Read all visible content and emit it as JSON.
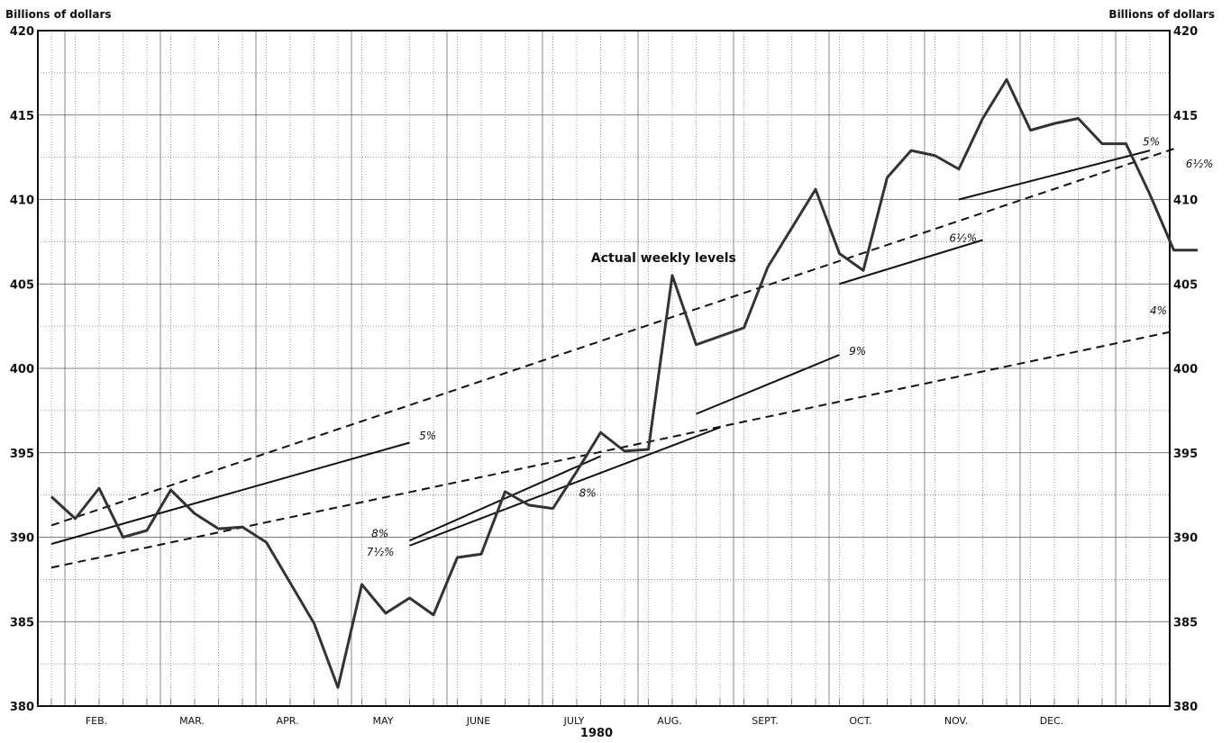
{
  "chart_data": {
    "type": "line",
    "title": "",
    "ylabel_left": "Billions of dollars",
    "ylabel_right": "Billions of dollars",
    "xlabel": "1980",
    "ylim": [
      380,
      420
    ],
    "yticks": [
      380,
      385,
      390,
      395,
      400,
      405,
      410,
      415,
      420
    ],
    "months": [
      "FEB.",
      "MAR.",
      "APR.",
      "MAY",
      "JUNE",
      "JULY",
      "AUG.",
      "SEPT.",
      "OCT.",
      "NOV.",
      "DEC."
    ],
    "grid": true,
    "series": [
      {
        "name": "Actual weekly levels",
        "style": "thick",
        "x_week": [
          0,
          1,
          2,
          3,
          4,
          5,
          6,
          7,
          8,
          9,
          10,
          11,
          12,
          13,
          14,
          15,
          16,
          17,
          18,
          19,
          20,
          21,
          22,
          23,
          24,
          25,
          26,
          27,
          28,
          29,
          30,
          31,
          32,
          33,
          34,
          35,
          36,
          37,
          38,
          39,
          40,
          41,
          42,
          43,
          44,
          45,
          46,
          47,
          48
        ],
        "values": [
          392.4,
          391.1,
          392.9,
          390.0,
          390.4,
          392.8,
          391.4,
          390.5,
          390.6,
          389.7,
          387.3,
          384.9,
          381.1,
          387.2,
          385.5,
          386.4,
          385.4,
          388.8,
          389.0,
          392.7,
          391.9,
          391.7,
          393.9,
          396.2,
          395.1,
          395.2,
          405.5,
          401.4,
          401.9,
          402.4,
          406.0,
          408.3,
          410.6,
          406.8,
          405.8,
          411.3,
          412.9,
          412.6,
          411.8,
          414.8,
          417.1,
          414.1,
          414.5,
          414.8,
          413.3,
          413.3,
          410.3,
          407.0,
          407.0
        ]
      }
    ],
    "target_lines": [
      {
        "label": "5%",
        "style": "solid",
        "x0_week": 0,
        "y0": 389.6,
        "x1_week": 15,
        "y1": 395.6
      },
      {
        "label": "8%",
        "style": "solid",
        "x0_week": 15,
        "y0": 389.8,
        "x1_week": 23,
        "y1": 394.8
      },
      {
        "label": "7½%",
        "style": "solid",
        "x0_week": 15,
        "y0": 389.5,
        "x1_week": 28,
        "y1": 396.5
      },
      {
        "label": "9%",
        "style": "solid",
        "x0_week": 27,
        "y0": 397.3,
        "x1_week": 33,
        "y1": 400.8
      },
      {
        "label": "6½%",
        "style": "solid",
        "x0_week": 33,
        "y0": 405.0,
        "x1_week": 39,
        "y1": 407.6
      },
      {
        "label": "5%",
        "style": "solid",
        "x0_week": 38,
        "y0": 410.0,
        "x1_week": 46,
        "y1": 412.9
      },
      {
        "label": "6½%",
        "style": "dashed",
        "x0_week": 0,
        "y0": 390.7,
        "x1_week": 47,
        "y1": 413.0
      },
      {
        "label": "4%",
        "style": "dashed",
        "x0_week": 0,
        "y0": 388.2,
        "x1_week": 47,
        "y1": 402.2
      }
    ],
    "annotations": [
      {
        "text": "5%",
        "x_week": 15.4,
        "y": 395.8
      },
      {
        "text": "8%",
        "x_week": 13.4,
        "y": 390.0
      },
      {
        "text": "7½%",
        "x_week": 13.2,
        "y": 388.9
      },
      {
        "text": "8%",
        "x_week": 22.1,
        "y": 392.4
      },
      {
        "text": "9%",
        "x_week": 33.4,
        "y": 400.8
      },
      {
        "text": "6½%",
        "x_week": 37.6,
        "y": 407.5
      },
      {
        "text": "5%",
        "x_week": 45.7,
        "y": 413.2
      },
      {
        "text": "6½%",
        "x_week": 47.5,
        "y": 411.9
      },
      {
        "text": "4%",
        "x_week": 46.0,
        "y": 403.2
      },
      {
        "text": "Actual weekly levels",
        "x_week": 22.6,
        "y": 406.3
      }
    ]
  }
}
